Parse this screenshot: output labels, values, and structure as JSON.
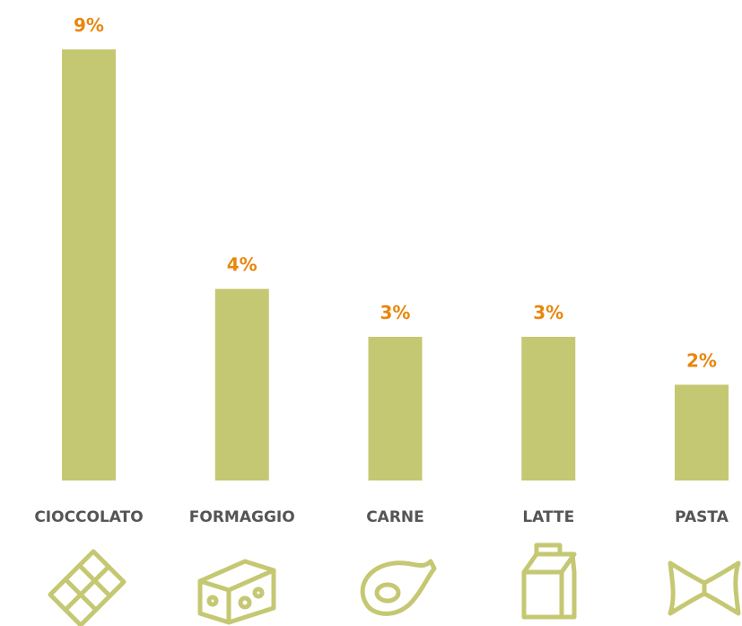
{
  "chart_data": {
    "type": "bar",
    "categories": [
      "CIOCCOLATO",
      "FORMAGGIO",
      "CARNE",
      "LATTE",
      "PASTA"
    ],
    "values": [
      9,
      4,
      3,
      3,
      2
    ],
    "value_labels": [
      "9%",
      "4%",
      "3%",
      "3%",
      "2%"
    ],
    "color": "#c5c872"
  }
}
